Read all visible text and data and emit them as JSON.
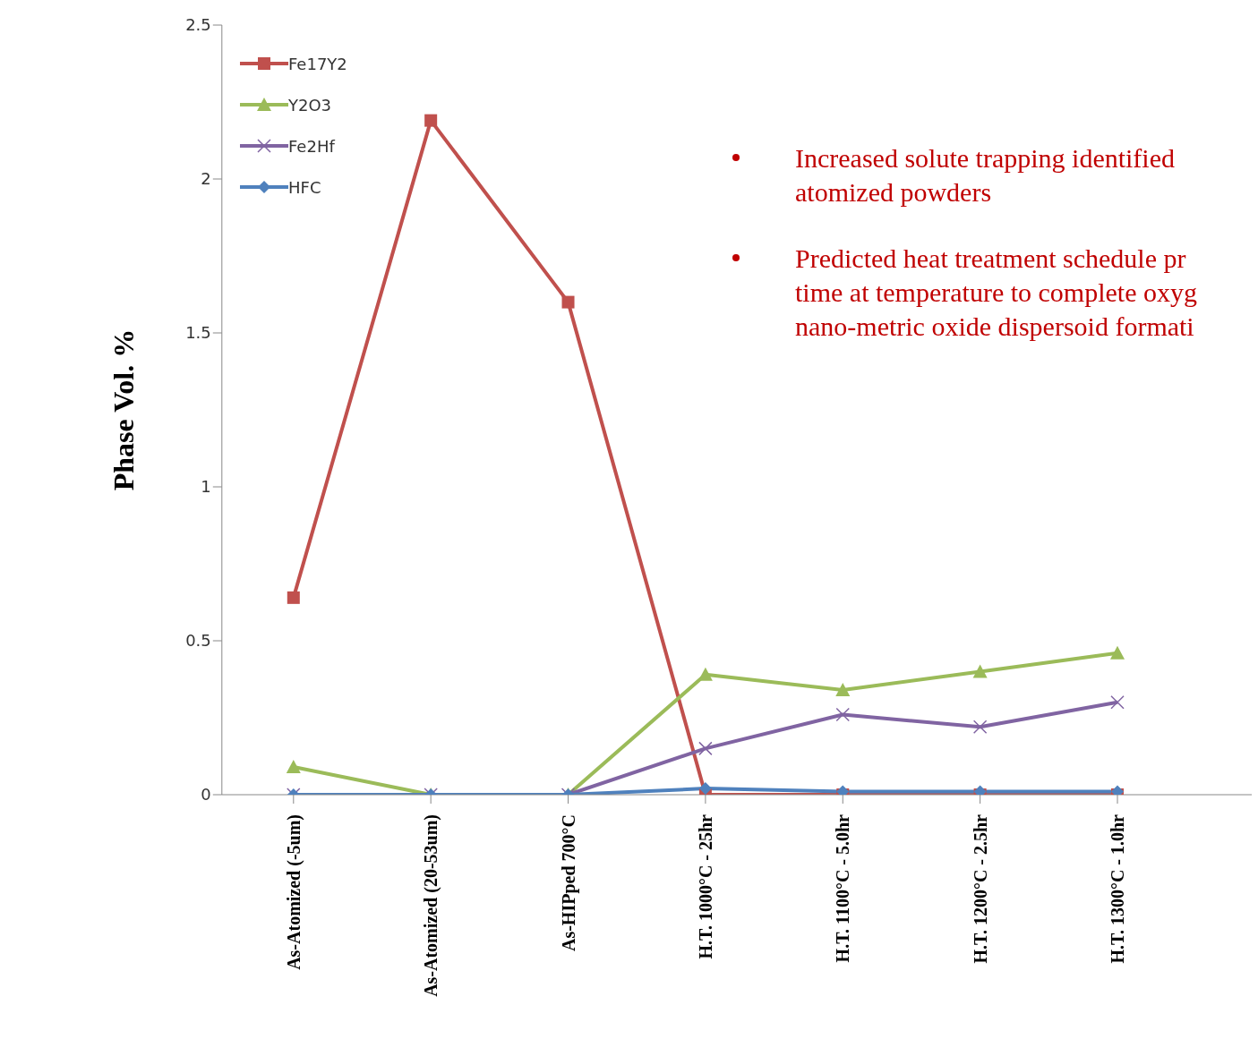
{
  "chart_data": {
    "type": "line",
    "ylabel": "Phase Vol. %",
    "categories": [
      "As-Atomized (-5um)",
      "As-Atomized (20-53um)",
      "As-HIPped 700°C",
      "H.T. 1000°C - 25hr",
      "H.T. 1100°C - 5.0hr",
      "H.T. 1200°C - 2.5hr",
      "H.T. 1300°C - 1.0hr"
    ],
    "series": [
      {
        "name": "Fe17Y2",
        "color": "#c0504d",
        "marker": "square",
        "values": [
          0.64,
          2.19,
          1.6,
          0,
          0,
          0,
          0
        ]
      },
      {
        "name": "Y2O3",
        "color": "#9bbb59",
        "marker": "triangle",
        "values": [
          0.09,
          0,
          0,
          0.39,
          0.34,
          0.4,
          0.46
        ]
      },
      {
        "name": "Fe2Hf",
        "color": "#8064a2",
        "marker": "cross",
        "values": [
          0,
          0,
          0,
          0.15,
          0.26,
          0.22,
          0.3
        ]
      },
      {
        "name": "HFC",
        "color": "#4f81bd",
        "marker": "diamond",
        "values": [
          0,
          0,
          0,
          0.02,
          0.01,
          0.01,
          0.01
        ]
      }
    ],
    "ylim": [
      0,
      2.5
    ],
    "yticks": [
      0,
      0.5,
      1,
      1.5,
      2,
      2.5
    ],
    "grid": false,
    "legend": "top left",
    "line_style": "solid",
    "annotations": [
      "Increased solute trapping identified\natomized powders",
      "Predicted heat treatment schedule pr\ntime at temperature to complete oxyg\nnano-metric oxide dispersoid formati"
    ]
  }
}
